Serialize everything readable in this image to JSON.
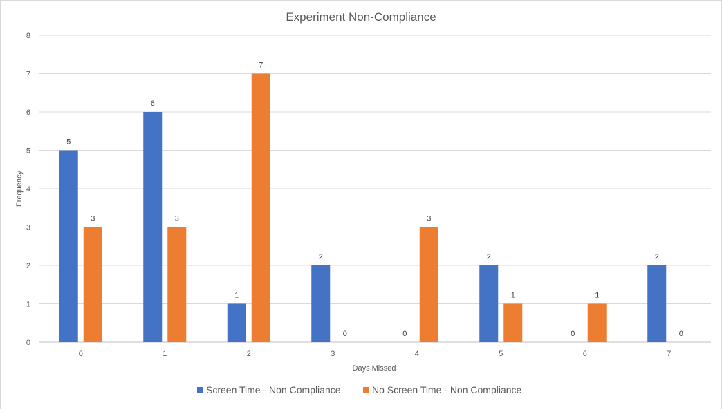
{
  "chart_data": {
    "type": "bar",
    "title": "Experiment Non-Compliance",
    "xlabel": "Days Missed",
    "ylabel": "Frequency",
    "categories": [
      "0",
      "1",
      "2",
      "3",
      "4",
      "5",
      "6",
      "7"
    ],
    "ylim": [
      0,
      8
    ],
    "yticks": [
      "0",
      "1",
      "2",
      "3",
      "4",
      "5",
      "6",
      "7",
      "8"
    ],
    "grid": true,
    "legend_position": "bottom",
    "series": [
      {
        "name": "Screen Time - Non Compliance",
        "color": "#4472C4",
        "values": [
          5,
          6,
          1,
          2,
          0,
          2,
          0,
          2
        ]
      },
      {
        "name": "No Screen Time - Non Compliance",
        "color": "#ED7D31",
        "values": [
          3,
          3,
          7,
          0,
          3,
          1,
          1,
          0
        ]
      }
    ]
  }
}
